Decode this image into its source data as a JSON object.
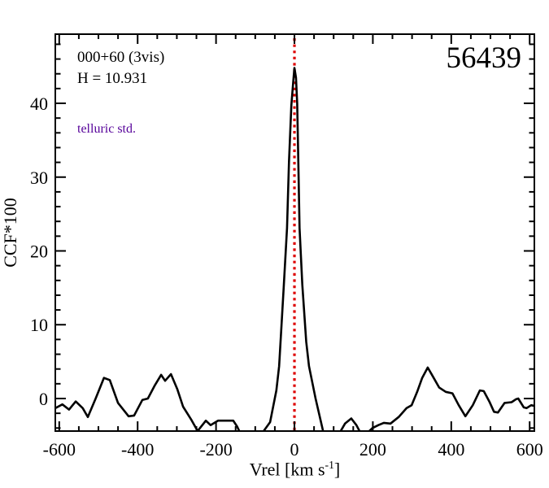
{
  "chart_data": {
    "type": "line",
    "title": "",
    "xlabel": "Vrel [km s^-1]",
    "xlabel_parts": {
      "main": "Vrel [km s",
      "sup": "-1",
      "close": "]"
    },
    "ylabel": "CCF*100",
    "xlim": [
      -610,
      612
    ],
    "ylim": [
      -4.41,
      49.37
    ],
    "grid": false,
    "x_major_ticks": [
      -600,
      -400,
      -200,
      0,
      200,
      400,
      600
    ],
    "x_tick_labels": [
      "-600",
      "-400",
      "-200",
      "0",
      "200",
      "400",
      "600"
    ],
    "x_minor_step": 50,
    "y_major_ticks": [
      0,
      10,
      20,
      30,
      40
    ],
    "y_tick_labels": [
      "0",
      "10",
      "20",
      "30",
      "40"
    ],
    "y_minor_step": 2,
    "marker_line_x": 0,
    "annotations": {
      "object_id": "000+60 (3vis)",
      "h_mag": "H = 10.931",
      "comparison_type": "telluric std.",
      "mjd": "56439"
    },
    "colors": {
      "curve": "#000000",
      "marker_line": "#dd0000",
      "telluric_text": "#550099",
      "text": "#000000",
      "background": "#ffffff"
    },
    "series": [
      {
        "name": "ccf",
        "points": [
          [
            -610,
            -1.3
          ],
          [
            -592,
            -0.8
          ],
          [
            -575,
            -1.5
          ],
          [
            -558,
            -0.4
          ],
          [
            -540,
            -1.3
          ],
          [
            -527,
            -2.5
          ],
          [
            -507,
            0.0
          ],
          [
            -486,
            2.8
          ],
          [
            -471,
            2.5
          ],
          [
            -450,
            -0.6
          ],
          [
            -423,
            -2.4
          ],
          [
            -409,
            -2.3
          ],
          [
            -388,
            -0.2
          ],
          [
            -374,
            0.0
          ],
          [
            -357,
            1.7
          ],
          [
            -340,
            3.2
          ],
          [
            -330,
            2.4
          ],
          [
            -315,
            3.3
          ],
          [
            -299,
            1.3
          ],
          [
            -284,
            -1.1
          ],
          [
            -264,
            -2.8
          ],
          [
            -247,
            -4.4
          ],
          [
            -226,
            -3.0
          ],
          [
            -214,
            -3.6
          ],
          [
            -195,
            -3.0
          ],
          [
            -170,
            -3.0
          ],
          [
            -156,
            -3.0
          ],
          [
            -146,
            -3.8
          ],
          [
            -139,
            -4.6
          ],
          [
            -118,
            -5.6
          ],
          [
            -98,
            -5.8
          ],
          [
            -77,
            -4.3
          ],
          [
            -62,
            -3.2
          ],
          [
            -46,
            1.1
          ],
          [
            -39,
            4.4
          ],
          [
            -33,
            9.9
          ],
          [
            -27,
            15.4
          ],
          [
            -19,
            23.1
          ],
          [
            -14,
            32.0
          ],
          [
            -8,
            39.7
          ],
          [
            -3,
            43.0
          ],
          [
            0,
            44.8
          ],
          [
            4,
            43.5
          ],
          [
            7,
            40.0
          ],
          [
            10,
            32.0
          ],
          [
            13,
            23.1
          ],
          [
            20,
            15.4
          ],
          [
            30,
            7.7
          ],
          [
            37,
            4.4
          ],
          [
            54,
            0.0
          ],
          [
            73,
            -4.4
          ],
          [
            89,
            -5.4
          ],
          [
            104,
            -5.2
          ],
          [
            116,
            -4.6
          ],
          [
            129,
            -3.4
          ],
          [
            145,
            -2.7
          ],
          [
            158,
            -3.6
          ],
          [
            172,
            -5.0
          ],
          [
            187,
            -4.6
          ],
          [
            199,
            -4.0
          ],
          [
            214,
            -3.6
          ],
          [
            228,
            -3.3
          ],
          [
            245,
            -3.4
          ],
          [
            266,
            -2.5
          ],
          [
            286,
            -1.3
          ],
          [
            299,
            -0.9
          ],
          [
            313,
            0.9
          ],
          [
            326,
            2.8
          ],
          [
            340,
            4.2
          ],
          [
            353,
            3.0
          ],
          [
            369,
            1.5
          ],
          [
            386,
            0.9
          ],
          [
            403,
            0.7
          ],
          [
            419,
            -0.9
          ],
          [
            436,
            -2.4
          ],
          [
            455,
            -0.9
          ],
          [
            473,
            1.1
          ],
          [
            483,
            1.0
          ],
          [
            497,
            -0.4
          ],
          [
            509,
            -1.8
          ],
          [
            519,
            -1.9
          ],
          [
            536,
            -0.6
          ],
          [
            554,
            -0.5
          ],
          [
            565,
            -0.1
          ],
          [
            571,
            0.0
          ],
          [
            585,
            -1.2
          ],
          [
            592,
            -1.3
          ],
          [
            604,
            -0.9
          ],
          [
            612,
            -1.0
          ]
        ]
      }
    ]
  }
}
